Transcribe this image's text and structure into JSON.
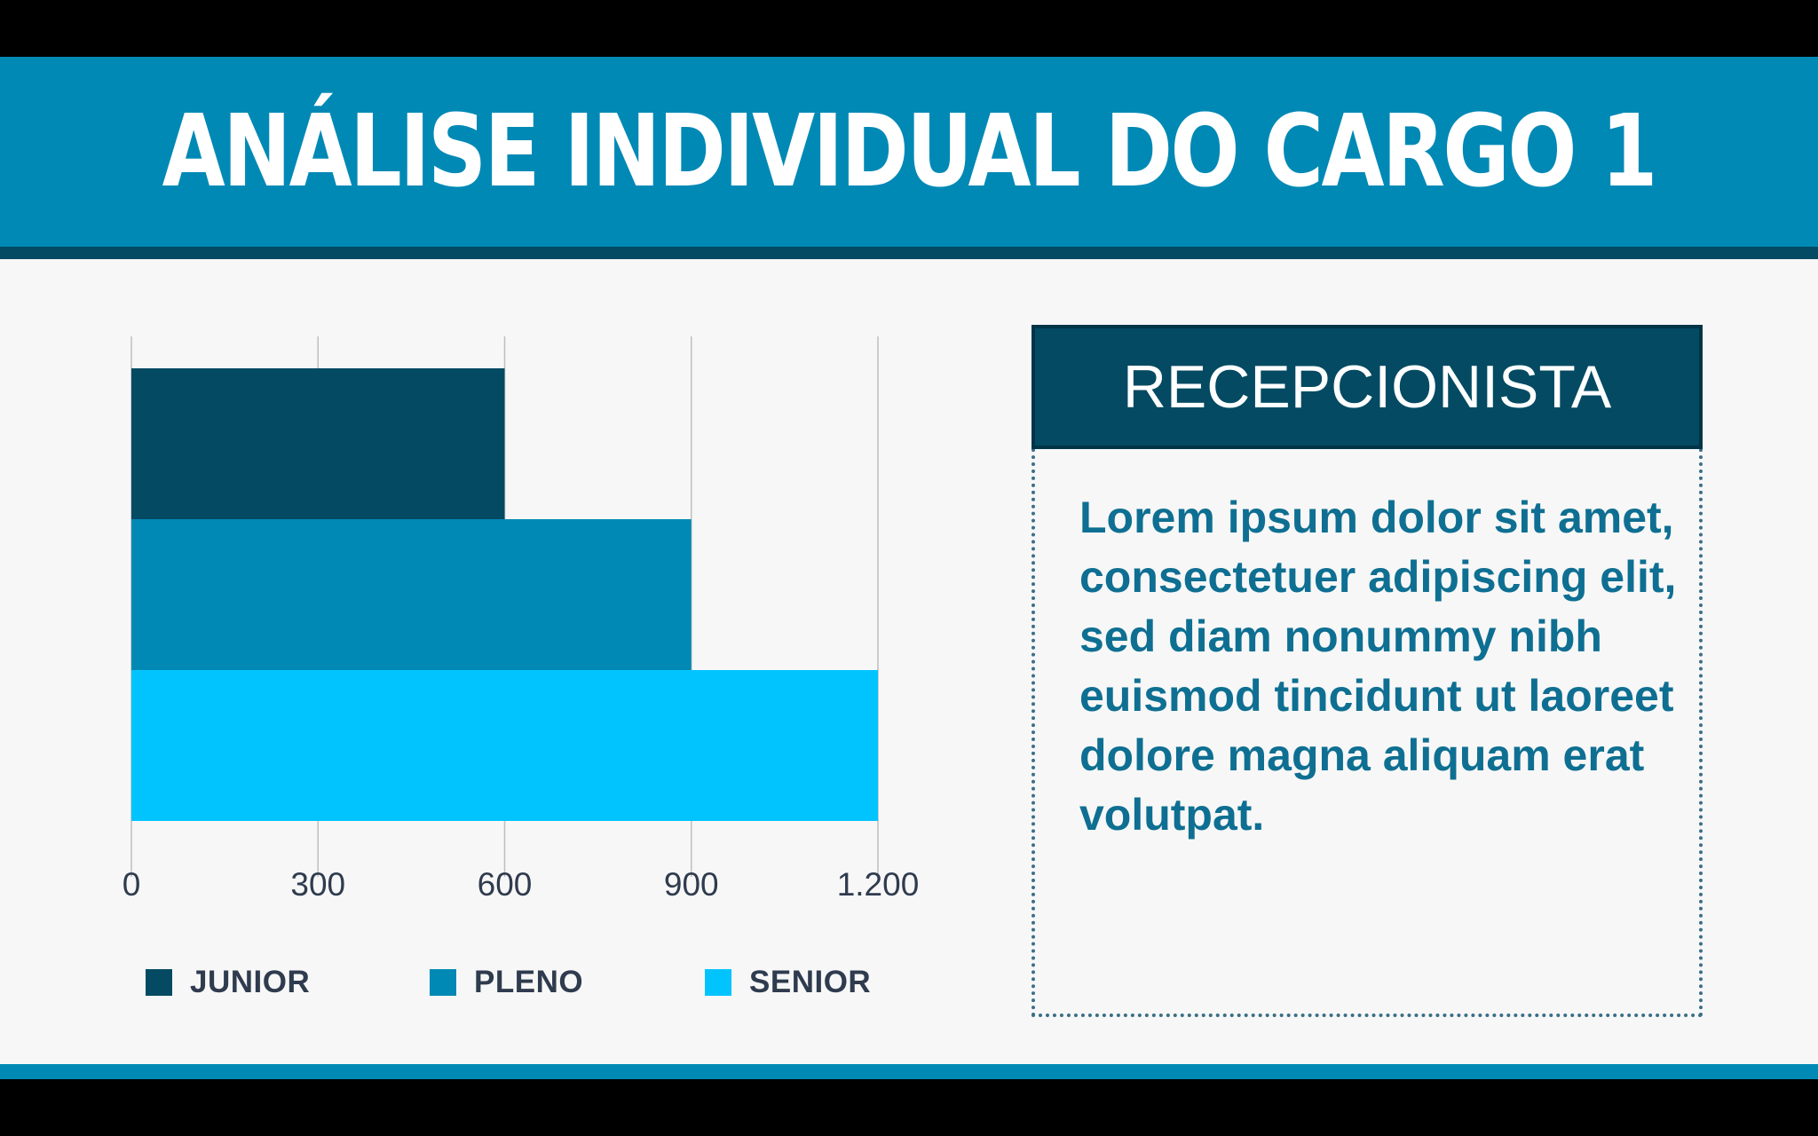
{
  "header": {
    "title": "ANÁLISE INDIVIDUAL DO CARGO 1"
  },
  "chart_data": {
    "type": "bar",
    "orientation": "horizontal",
    "categories": [
      "JUNIOR",
      "PLENO",
      "SENIOR"
    ],
    "values": [
      600,
      900,
      1200
    ],
    "colors": [
      "#034a62",
      "#0189b5",
      "#01c4ff"
    ],
    "xlim": [
      0,
      1200
    ],
    "xticks": [
      0,
      300,
      600,
      900,
      1200
    ],
    "xtick_labels": [
      "0",
      "300",
      "600",
      "900",
      "1.200"
    ],
    "grid": true,
    "legend_position": "bottom",
    "title": "",
    "xlabel": "",
    "ylabel": ""
  },
  "panel": {
    "title": "RECEPCIONISTA",
    "text": "Lorem ipsum dolor sit amet, consectetuer adipiscing elit, sed diam nonummy nibh euismod tincidunt ut laoreet dolore magna aliquam erat volutpat."
  },
  "colors": {
    "header_bg": "#0189b5",
    "header_border": "#034a62",
    "background": "#f7f7f7",
    "panel_header_bg": "#034a62",
    "panel_text": "#0e6f92"
  }
}
